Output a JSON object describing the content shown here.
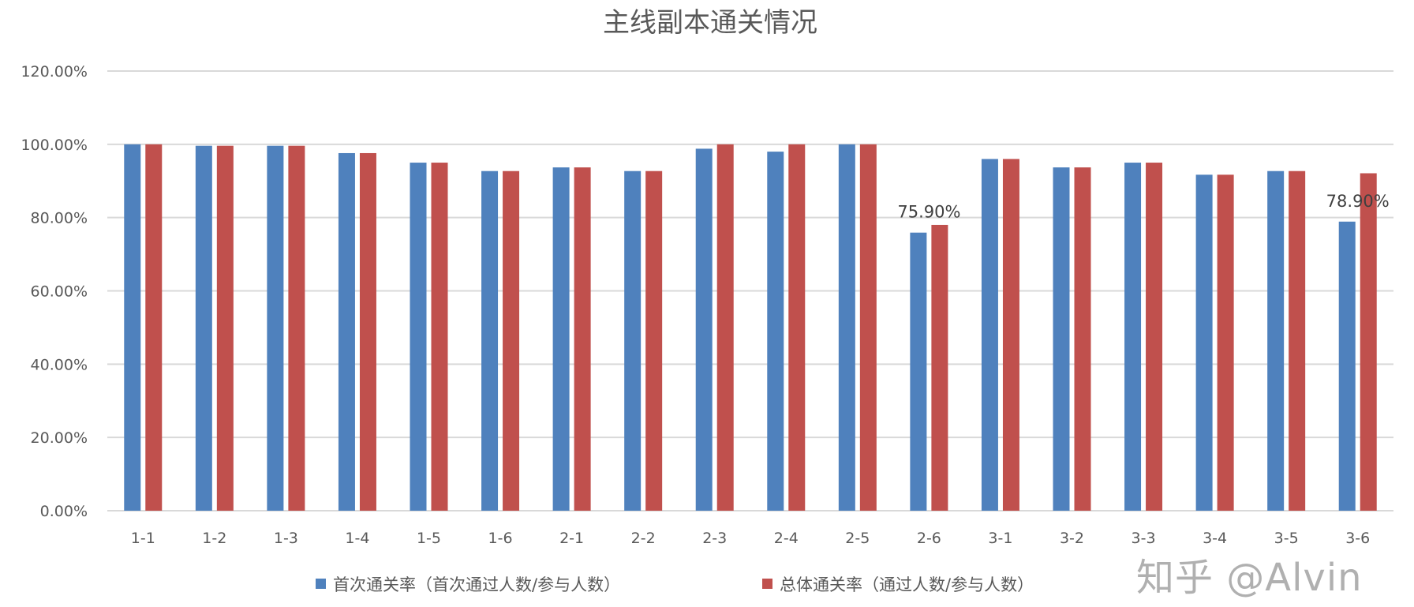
{
  "chart_data": {
    "type": "bar",
    "title": "主线副本通关情况",
    "xlabel": "",
    "ylabel": "",
    "ylim": [
      0,
      1.2
    ],
    "yticks": [
      "0.00%",
      "20.00%",
      "40.00%",
      "60.00%",
      "80.00%",
      "100.00%",
      "120.00%"
    ],
    "grid": true,
    "legend_position": "bottom",
    "categories": [
      "1-1",
      "1-2",
      "1-3",
      "1-4",
      "1-5",
      "1-6",
      "2-1",
      "2-2",
      "2-3",
      "2-4",
      "2-5",
      "2-6",
      "3-1",
      "3-2",
      "3-3",
      "3-4",
      "3-5",
      "3-6"
    ],
    "series": [
      {
        "name": "首次通关率（首次通过人数/参与人数）",
        "color": "#4F81BD",
        "values": [
          1.0,
          0.996,
          0.996,
          0.976,
          0.95,
          0.927,
          0.937,
          0.927,
          0.988,
          0.98,
          1.0,
          0.759,
          0.96,
          0.937,
          0.95,
          0.917,
          0.927,
          0.789
        ]
      },
      {
        "name": "总体通关率（通过人数/参与人数）",
        "color": "#C0504D",
        "values": [
          1.0,
          0.996,
          0.996,
          0.976,
          0.95,
          0.927,
          0.937,
          0.927,
          1.0,
          1.0,
          1.0,
          0.78,
          0.96,
          0.937,
          0.95,
          0.917,
          0.927,
          0.921
        ]
      }
    ],
    "annotations": [
      {
        "category": "2-6",
        "series": 0,
        "text": "75.90%"
      },
      {
        "category": "3-6",
        "series": 0,
        "text": "78.90%"
      }
    ]
  },
  "watermark": "知乎 @Alvin"
}
